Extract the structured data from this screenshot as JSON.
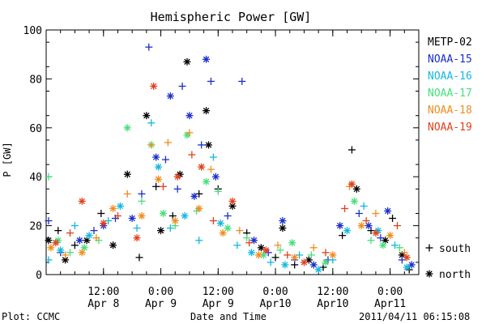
{
  "chart_data": {
    "type": "scatter",
    "title": "Hemispheric Power [GW]",
    "xlabel": "Date and Time",
    "ylabel": "P [GW]",
    "ylim": [
      0,
      100
    ],
    "xlim": [
      "2011-04-08 00:00",
      "2011-04-11 06:00"
    ],
    "y_ticks": [
      0,
      20,
      40,
      60,
      80,
      100
    ],
    "x_ticks": [
      {
        "x": "2011-04-08 12:00",
        "time": "12:00",
        "date": "Apr 8"
      },
      {
        "x": "2011-04-09 00:00",
        "time": "0:00",
        "date": "Apr 9"
      },
      {
        "x": "2011-04-09 12:00",
        "time": "12:00",
        "date": "Apr 9"
      },
      {
        "x": "2011-04-10 00:00",
        "time": "0:00",
        "date": "Apr10"
      },
      {
        "x": "2011-04-10 12:00",
        "time": "12:00",
        "date": "Apr10"
      },
      {
        "x": "2011-04-11 00:00",
        "time": "0:00",
        "date": "Apr11"
      }
    ],
    "marker_legend": [
      {
        "symbol": "+",
        "label": "south"
      },
      {
        "symbol": "*",
        "label": "north"
      }
    ],
    "series": [
      {
        "name": "METP-02",
        "color": "#000000",
        "points": [
          [
            "2011-04-08 00:30",
            14,
            "*"
          ],
          [
            "2011-04-08 02:30",
            18,
            "+"
          ],
          [
            "2011-04-08 04:00",
            6,
            "*"
          ],
          [
            "2011-04-08 06:00",
            12,
            "+"
          ],
          [
            "2011-04-08 08:30",
            14,
            "*"
          ],
          [
            "2011-04-08 11:30",
            25,
            "+"
          ],
          [
            "2011-04-08 14:00",
            12,
            "*"
          ],
          [
            "2011-04-08 17:00",
            41,
            "*"
          ],
          [
            "2011-04-08 19:30",
            7,
            "+"
          ],
          [
            "2011-04-08 21:00",
            65,
            "*"
          ],
          [
            "2011-04-08 23:00",
            36,
            "+"
          ],
          [
            "2011-04-09 00:00",
            18,
            "*"
          ],
          [
            "2011-04-09 02:30",
            24,
            "+"
          ],
          [
            "2011-04-09 04:00",
            41,
            "*"
          ],
          [
            "2011-04-09 05:30",
            87,
            "*"
          ],
          [
            "2011-04-09 08:00",
            33,
            "+"
          ],
          [
            "2011-04-09 09:30",
            67,
            "*"
          ],
          [
            "2011-04-09 10:00",
            53,
            "*"
          ],
          [
            "2011-04-09 12:00",
            35,
            "+"
          ],
          [
            "2011-04-09 15:00",
            28,
            "*"
          ],
          [
            "2011-04-09 18:00",
            17,
            "+"
          ],
          [
            "2011-04-09 21:00",
            11,
            "*"
          ],
          [
            "2011-04-10 00:00",
            7,
            "+"
          ],
          [
            "2011-04-10 01:30",
            19,
            "*"
          ],
          [
            "2011-04-10 04:00",
            4,
            "+"
          ],
          [
            "2011-04-10 07:00",
            6,
            "*"
          ],
          [
            "2011-04-10 10:00",
            3,
            "+"
          ],
          [
            "2011-04-10 14:00",
            16,
            "+"
          ],
          [
            "2011-04-10 16:00",
            51,
            "+"
          ],
          [
            "2011-04-10 17:00",
            35,
            "*"
          ],
          [
            "2011-04-10 20:00",
            18,
            "+"
          ],
          [
            "2011-04-10 23:00",
            14,
            "*"
          ],
          [
            "2011-04-11 00:30",
            23,
            "+"
          ],
          [
            "2011-04-11 02:30",
            8,
            "*"
          ],
          [
            "2011-04-11 04:00",
            2,
            "+"
          ]
        ]
      },
      {
        "name": "NOAA-15",
        "color": "#1a2ecc",
        "points": [
          [
            "2011-04-08 00:30",
            22,
            "+"
          ],
          [
            "2011-04-08 03:00",
            9,
            "+"
          ],
          [
            "2011-04-08 07:00",
            14,
            "*"
          ],
          [
            "2011-04-08 10:00",
            18,
            "+"
          ],
          [
            "2011-04-08 12:00",
            20,
            "*"
          ],
          [
            "2011-04-08 14:30",
            23,
            "+"
          ],
          [
            "2011-04-08 18:00",
            23,
            "*"
          ],
          [
            "2011-04-08 20:00",
            33,
            "+"
          ],
          [
            "2011-04-08 21:30",
            93,
            "+"
          ],
          [
            "2011-04-08 23:00",
            48,
            "*"
          ],
          [
            "2011-04-09 01:00",
            47,
            "+"
          ],
          [
            "2011-04-09 02:00",
            73,
            "*"
          ],
          [
            "2011-04-09 03:30",
            35,
            "+"
          ],
          [
            "2011-04-09 04:30",
            77,
            "+"
          ],
          [
            "2011-04-09 06:00",
            65,
            "*"
          ],
          [
            "2011-04-09 07:00",
            32,
            "*"
          ],
          [
            "2011-04-09 08:30",
            53,
            "+"
          ],
          [
            "2011-04-09 09:30",
            88,
            "*"
          ],
          [
            "2011-04-09 10:30",
            79,
            "+"
          ],
          [
            "2011-04-09 11:30",
            40,
            "*"
          ],
          [
            "2011-04-09 14:00",
            24,
            "+"
          ],
          [
            "2011-04-09 17:00",
            79,
            "+"
          ],
          [
            "2011-04-09 19:30",
            14,
            "*"
          ],
          [
            "2011-04-09 22:30",
            9,
            "+"
          ],
          [
            "2011-04-10 01:30",
            22,
            "*"
          ],
          [
            "2011-04-10 04:00",
            6,
            "+"
          ],
          [
            "2011-04-10 08:00",
            4,
            "*"
          ],
          [
            "2011-04-10 11:00",
            6,
            "+"
          ],
          [
            "2011-04-10 13:30",
            20,
            "*"
          ],
          [
            "2011-04-10 17:30",
            25,
            "+"
          ],
          [
            "2011-04-10 19:30",
            20,
            "*"
          ],
          [
            "2011-04-10 22:00",
            15,
            "+"
          ],
          [
            "2011-04-10 23:30",
            26,
            "*"
          ],
          [
            "2011-04-11 02:30",
            6,
            "+"
          ],
          [
            "2011-04-11 04:30",
            4,
            "*"
          ]
        ]
      },
      {
        "name": "NOAA-16",
        "color": "#12b8e0",
        "points": [
          [
            "2011-04-08 00:30",
            6,
            "+"
          ],
          [
            "2011-04-08 03:00",
            10,
            "*"
          ],
          [
            "2011-04-08 06:00",
            20,
            "+"
          ],
          [
            "2011-04-08 09:00",
            16,
            "*"
          ],
          [
            "2011-04-08 13:00",
            22,
            "+"
          ],
          [
            "2011-04-08 15:30",
            28,
            "*"
          ],
          [
            "2011-04-08 19:00",
            19,
            "+"
          ],
          [
            "2011-04-08 22:00",
            62,
            "+"
          ],
          [
            "2011-04-08 23:30",
            44,
            "*"
          ],
          [
            "2011-04-09 02:00",
            19,
            "+"
          ],
          [
            "2011-04-09 05:00",
            24,
            "*"
          ],
          [
            "2011-04-09 08:00",
            14,
            "+"
          ],
          [
            "2011-04-09 11:00",
            48,
            "+"
          ],
          [
            "2011-04-09 12:30",
            21,
            "*"
          ],
          [
            "2011-04-09 16:00",
            12,
            "+"
          ],
          [
            "2011-04-09 19:00",
            9,
            "*"
          ],
          [
            "2011-04-09 23:00",
            5,
            "+"
          ],
          [
            "2011-04-10 02:00",
            4,
            "*"
          ],
          [
            "2011-04-10 05:00",
            8,
            "+"
          ],
          [
            "2011-04-10 09:00",
            2,
            "*"
          ],
          [
            "2011-04-10 12:00",
            6,
            "+"
          ],
          [
            "2011-04-10 15:00",
            18,
            "*"
          ],
          [
            "2011-04-10 18:30",
            28,
            "+"
          ],
          [
            "2011-04-10 21:30",
            18,
            "*"
          ],
          [
            "2011-04-11 01:00",
            12,
            "+"
          ],
          [
            "2011-04-11 03:30",
            3,
            "*"
          ]
        ]
      },
      {
        "name": "NOAA-17",
        "color": "#44e07a",
        "points": [
          [
            "2011-04-08 00:30",
            40,
            "+"
          ],
          [
            "2011-04-08 02:30",
            14,
            "*"
          ],
          [
            "2011-04-08 05:00",
            9,
            "+"
          ],
          [
            "2011-04-08 08:00",
            11,
            "*"
          ],
          [
            "2011-04-08 11:00",
            14,
            "+"
          ],
          [
            "2011-04-08 17:00",
            60,
            "*"
          ],
          [
            "2011-04-08 20:00",
            30,
            "+"
          ],
          [
            "2011-04-08 22:00",
            53,
            "*"
          ],
          [
            "2011-04-09 00:30",
            25,
            "*"
          ],
          [
            "2011-04-09 03:00",
            20,
            "+"
          ],
          [
            "2011-04-09 05:30",
            57,
            "*"
          ],
          [
            "2011-04-09 07:30",
            26,
            "+"
          ],
          [
            "2011-04-09 09:30",
            38,
            "*"
          ],
          [
            "2011-04-09 12:00",
            34,
            "+"
          ],
          [
            "2011-04-09 14:00",
            19,
            "*"
          ],
          [
            "2011-04-09 18:00",
            15,
            "+"
          ],
          [
            "2011-04-09 21:30",
            8,
            "*"
          ],
          [
            "2011-04-10 01:00",
            10,
            "+"
          ],
          [
            "2011-04-10 03:30",
            13,
            "*"
          ],
          [
            "2011-04-10 07:30",
            8,
            "+"
          ],
          [
            "2011-04-10 10:30",
            5,
            "*"
          ],
          [
            "2011-04-10 16:30",
            30,
            "*"
          ],
          [
            "2011-04-10 20:00",
            14,
            "+"
          ],
          [
            "2011-04-10 22:30",
            12,
            "*"
          ],
          [
            "2011-04-11 02:00",
            11,
            "+"
          ]
        ]
      },
      {
        "name": "NOAA-18",
        "color": "#f08c1c",
        "points": [
          [
            "2011-04-08 01:00",
            11,
            "*"
          ],
          [
            "2011-04-08 04:00",
            8,
            "+"
          ],
          [
            "2011-04-08 07:30",
            9,
            "*"
          ],
          [
            "2011-04-08 10:30",
            15,
            "+"
          ],
          [
            "2011-04-08 14:00",
            27,
            "*"
          ],
          [
            "2011-04-08 17:00",
            33,
            "+"
          ],
          [
            "2011-04-08 20:00",
            24,
            "*"
          ],
          [
            "2011-04-08 22:00",
            53,
            "+"
          ],
          [
            "2011-04-08 23:30",
            39,
            "*"
          ],
          [
            "2011-04-09 01:30",
            54,
            "+"
          ],
          [
            "2011-04-09 03:00",
            22,
            "*"
          ],
          [
            "2011-04-09 06:00",
            58,
            "+"
          ],
          [
            "2011-04-09 08:00",
            27,
            "*"
          ],
          [
            "2011-04-09 10:30",
            43,
            "+"
          ],
          [
            "2011-04-09 13:00",
            17,
            "*"
          ],
          [
            "2011-04-09 16:30",
            18,
            "+"
          ],
          [
            "2011-04-09 20:30",
            8,
            "*"
          ],
          [
            "2011-04-10 00:30",
            12,
            "+"
          ],
          [
            "2011-04-10 04:00",
            7,
            "*"
          ],
          [
            "2011-04-10 08:00",
            11,
            "+"
          ],
          [
            "2011-04-10 12:00",
            8,
            "*"
          ],
          [
            "2011-04-10 15:30",
            36,
            "+"
          ],
          [
            "2011-04-10 18:00",
            20,
            "*"
          ],
          [
            "2011-04-10 21:00",
            25,
            "+"
          ],
          [
            "2011-04-11 00:00",
            16,
            "*"
          ],
          [
            "2011-04-11 03:00",
            9,
            "+"
          ]
        ]
      },
      {
        "name": "NOAA-19",
        "color": "#e0401c",
        "points": [
          [
            "2011-04-08 02:00",
            13,
            "*"
          ],
          [
            "2011-04-08 05:00",
            17,
            "+"
          ],
          [
            "2011-04-08 07:30",
            30,
            "*"
          ],
          [
            "2011-04-08 12:00",
            21,
            "*"
          ],
          [
            "2011-04-08 15:00",
            24,
            "+"
          ],
          [
            "2011-04-08 19:00",
            15,
            "*"
          ],
          [
            "2011-04-08 22:30",
            77,
            "*"
          ],
          [
            "2011-04-09 00:30",
            36,
            "+"
          ],
          [
            "2011-04-09 03:30",
            40,
            "*"
          ],
          [
            "2011-04-09 06:30",
            49,
            "+"
          ],
          [
            "2011-04-09 08:30",
            44,
            "*"
          ],
          [
            "2011-04-09 11:00",
            22,
            "+"
          ],
          [
            "2011-04-09 15:00",
            30,
            "*"
          ],
          [
            "2011-04-09 18:30",
            13,
            "+"
          ],
          [
            "2011-04-09 22:00",
            10,
            "*"
          ],
          [
            "2011-04-10 02:30",
            8,
            "+"
          ],
          [
            "2011-04-10 06:00",
            5,
            "*"
          ],
          [
            "2011-04-10 10:30",
            9,
            "+"
          ],
          [
            "2011-04-10 14:30",
            27,
            "+"
          ],
          [
            "2011-04-10 16:00",
            37,
            "*"
          ],
          [
            "2011-04-10 19:00",
            22,
            "+"
          ],
          [
            "2011-04-10 21:00",
            17,
            "*"
          ],
          [
            "2011-04-11 01:30",
            20,
            "+"
          ],
          [
            "2011-04-11 03:30",
            7,
            "*"
          ]
        ]
      }
    ]
  },
  "footer": {
    "plot_credit": "Plot: CCMC",
    "timestamp": "2011/04/11 06:15:08"
  }
}
